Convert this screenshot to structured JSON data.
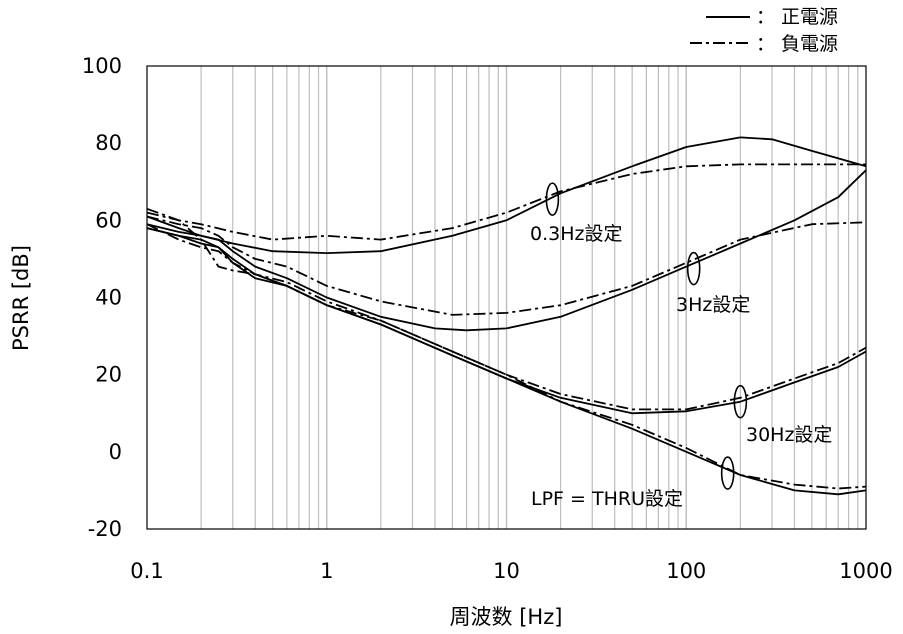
{
  "chart_data": {
    "type": "line",
    "xlabel": "周波数 [Hz]",
    "ylabel": "PSRR [dB]",
    "xscale": "log",
    "xlim": [
      0.1,
      1000
    ],
    "ylim": [
      -20,
      100
    ],
    "x_ticks": [
      "0.1",
      "1",
      "10",
      "100",
      "1000"
    ],
    "y_ticks": [
      "-20",
      "0",
      "20",
      "40",
      "60",
      "80",
      "100"
    ],
    "grid": "vertical log minor lines",
    "legend": {
      "position": "top-right",
      "entries": [
        {
          "style": "solid",
          "label": "： 正電源"
        },
        {
          "style": "dash-dot",
          "label": "： 負電源"
        }
      ]
    },
    "annotations": [
      {
        "label": "0.3Hz設定"
      },
      {
        "label": "3Hz設定"
      },
      {
        "label": "30Hz設定"
      },
      {
        "label": "LPF = THRU設定"
      }
    ],
    "series": [
      {
        "setting": "0.3Hz設定",
        "supply": "正電源",
        "style": "solid",
        "x": [
          0.1,
          0.15,
          0.2,
          0.3,
          0.5,
          1,
          2,
          5,
          10,
          20,
          50,
          100,
          200,
          300,
          500,
          1000
        ],
        "y": [
          61,
          58,
          56,
          54,
          52,
          51.5,
          52,
          56,
          60,
          67,
          74,
          79,
          81.5,
          81,
          78,
          74
        ]
      },
      {
        "setting": "0.3Hz設定",
        "supply": "負電源",
        "style": "dash-dot",
        "x": [
          0.1,
          0.15,
          0.2,
          0.3,
          0.5,
          1,
          2,
          5,
          10,
          20,
          50,
          100,
          200,
          500,
          1000
        ],
        "y": [
          62,
          60,
          59,
          57,
          55,
          56,
          55,
          58,
          62,
          67.5,
          72,
          74,
          74.5,
          74.5,
          74.5
        ]
      },
      {
        "setting": "3Hz設定",
        "supply": "正電源",
        "style": "solid",
        "x": [
          0.1,
          0.15,
          0.2,
          0.25,
          0.3,
          0.4,
          0.6,
          1,
          2,
          4,
          6,
          10,
          20,
          50,
          100,
          200,
          400,
          700,
          1000
        ],
        "y": [
          59,
          57,
          56,
          55,
          52,
          48,
          45,
          40,
          35,
          32,
          31.5,
          32,
          35,
          42,
          48,
          54,
          60,
          66,
          73
        ]
      },
      {
        "setting": "3Hz設定",
        "supply": "負電源",
        "style": "dash-dot",
        "x": [
          0.1,
          0.15,
          0.2,
          0.25,
          0.3,
          0.4,
          0.6,
          1,
          2,
          5,
          10,
          20,
          50,
          100,
          200,
          500,
          1000
        ],
        "y": [
          61,
          59,
          58,
          56,
          53,
          50,
          48,
          43,
          39,
          35.5,
          36,
          38,
          43,
          49,
          55,
          59,
          59.5
        ]
      },
      {
        "setting": "30Hz設定",
        "supply": "正電源",
        "style": "solid",
        "x": [
          0.1,
          0.15,
          0.2,
          0.25,
          0.3,
          0.4,
          0.6,
          1,
          2,
          5,
          10,
          20,
          50,
          100,
          200,
          400,
          700,
          1000
        ],
        "y": [
          58,
          56,
          55,
          53,
          50,
          46,
          43,
          38,
          33,
          25,
          19,
          14,
          10,
          10.5,
          13,
          18,
          22,
          26
        ]
      },
      {
        "setting": "30Hz設定",
        "supply": "負電源",
        "style": "dash-dot",
        "x": [
          0.1,
          0.15,
          0.2,
          0.25,
          0.3,
          0.4,
          0.6,
          1,
          2,
          5,
          10,
          20,
          50,
          100,
          200,
          400,
          700,
          1000
        ],
        "y": [
          59,
          55,
          53,
          52,
          49,
          46,
          44,
          39,
          34,
          26,
          20,
          15,
          11,
          11,
          14,
          19,
          23,
          27
        ]
      },
      {
        "setting": "LPF = THRU設定",
        "supply": "正電源",
        "style": "solid",
        "x": [
          0.1,
          0.15,
          0.2,
          0.25,
          0.3,
          0.4,
          0.6,
          1,
          2,
          5,
          10,
          20,
          50,
          100,
          200,
          400,
          700,
          1000
        ],
        "y": [
          58,
          56,
          54,
          53,
          49,
          45,
          43,
          38,
          33,
          25,
          19,
          13,
          6,
          0,
          -6,
          -10,
          -11,
          -10
        ]
      },
      {
        "setting": "LPF = THRU設定",
        "supply": "負電源",
        "style": "dash-dot",
        "x": [
          0.1,
          0.15,
          0.2,
          0.25,
          0.3,
          0.4,
          0.6,
          1,
          2,
          5,
          10,
          20,
          50,
          100,
          200,
          400,
          700,
          1000
        ],
        "y": [
          63,
          60,
          55,
          48,
          47,
          46,
          43,
          38,
          34,
          26,
          20,
          13,
          7,
          1,
          -6,
          -8.5,
          -9.5,
          -9
        ]
      }
    ]
  }
}
